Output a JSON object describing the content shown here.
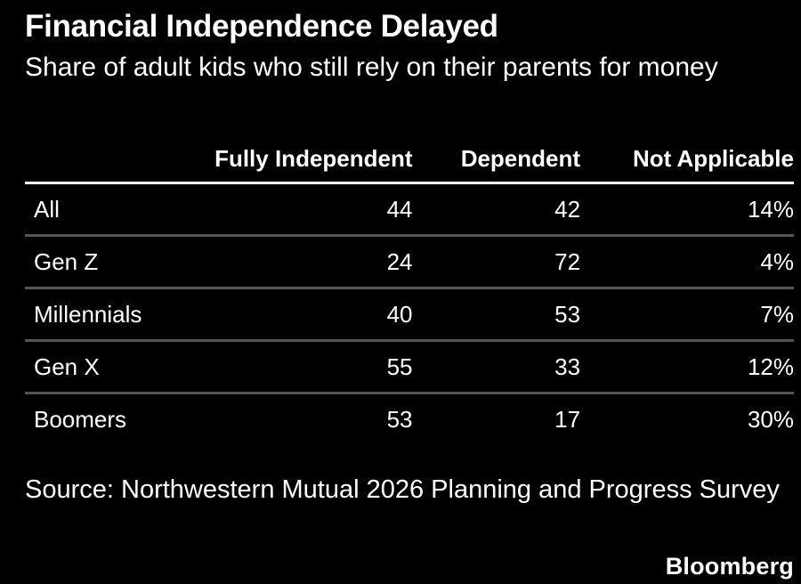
{
  "chart_data": {
    "type": "table",
    "title": "Financial Independence Delayed",
    "subtitle": "Share of adult kids who still rely on their parents for money",
    "columns": [
      "",
      "Fully Independent",
      "Dependent",
      "Not Applicable"
    ],
    "rows": [
      {
        "label": "All",
        "fully_independent": "44",
        "dependent": "42",
        "not_applicable": "14%"
      },
      {
        "label": "Gen Z",
        "fully_independent": "24",
        "dependent": "72",
        "not_applicable": "4%"
      },
      {
        "label": "Millennials",
        "fully_independent": "40",
        "dependent": "53",
        "not_applicable": "7%"
      },
      {
        "label": "Gen X",
        "fully_independent": "55",
        "dependent": "33",
        "not_applicable": "12%"
      },
      {
        "label": "Boomers",
        "fully_independent": "53",
        "dependent": "17",
        "not_applicable": "30%"
      }
    ],
    "source": "Source: Northwestern Mutual 2026 Planning and Progress Survey"
  },
  "brand": "Bloomberg",
  "colors": {
    "background": "#000000",
    "text": "#ffffff",
    "header_rule": "#ffffff",
    "row_rule": "#555555"
  }
}
